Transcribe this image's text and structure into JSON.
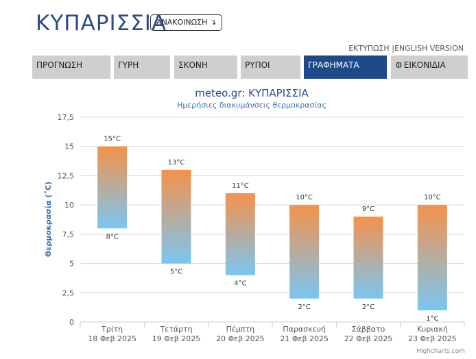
{
  "header": {
    "city": "ΚΥΠΑΡΙΣΣΙΑ",
    "announcement_button": "ΑΝΑΚΟΙΝΩΣΗ",
    "announcement_icon": "arrow-down-icon",
    "print_link": "ΕΚΤΥΠΩΣΗ",
    "separator": "|",
    "english_link": "ENGLISH VERSION"
  },
  "tabs": [
    {
      "label": "ΠΡΟΓΝΩΣΗ",
      "active": false
    },
    {
      "label": "ΓΥΡΗ",
      "active": false
    },
    {
      "label": "ΣΚΟΝΗ",
      "active": false
    },
    {
      "label": "ΡΥΠΟΙ",
      "active": false
    },
    {
      "label": "ΓΡΑΦΗΜΑΤΑ",
      "active": true
    },
    {
      "label": "ΕΙΚΟΝΙΔΙΑ",
      "active": false,
      "icon": "gear-icon"
    }
  ],
  "colors": {
    "accent": "#1e4a8a",
    "bar_top": "#f4924a",
    "bar_bottom": "#7ac6f1",
    "title": "#2b4a8c"
  },
  "chart_data": {
    "type": "bar",
    "subtype": "columnrange",
    "title": "meteo.gr: ΚΥΠΑΡΙΣΣΙΑ",
    "subtitle": "Ημερήσιες διακυμάνσεις θερμοκρασίας",
    "ylabel": "Θερμοκρασία (˚C)",
    "ylim": [
      0,
      17.5
    ],
    "yticks": [
      "0",
      "2,5",
      "5",
      "7,5",
      "10",
      "12,5",
      "15",
      "17,5"
    ],
    "grid": true,
    "legend": "none",
    "categories": [
      {
        "day": "Τρίτη",
        "date": "18 Φεβ 2025"
      },
      {
        "day": "Τετάρτη",
        "date": "19 Φεβ 2025"
      },
      {
        "day": "Πέμπτη",
        "date": "20 Φεβ 2025"
      },
      {
        "day": "Παρασκευή",
        "date": "21 Φεβ 2025"
      },
      {
        "day": "Σάββατο",
        "date": "22 Φεβ 2025"
      },
      {
        "day": "Κυριακή",
        "date": "23 Φεβ 2025"
      }
    ],
    "series": [
      {
        "low": [
          8,
          5,
          4,
          2,
          2,
          1
        ],
        "high": [
          15,
          13,
          11,
          10,
          9,
          10
        ],
        "low_labels": [
          "8°C",
          "5°C",
          "4°C",
          "2°C",
          "2°C",
          "1°C"
        ],
        "high_labels": [
          "15°C",
          "13°C",
          "11°C",
          "10°C",
          "9°C",
          "10°C"
        ]
      }
    ],
    "credits": "Highcharts.com"
  }
}
